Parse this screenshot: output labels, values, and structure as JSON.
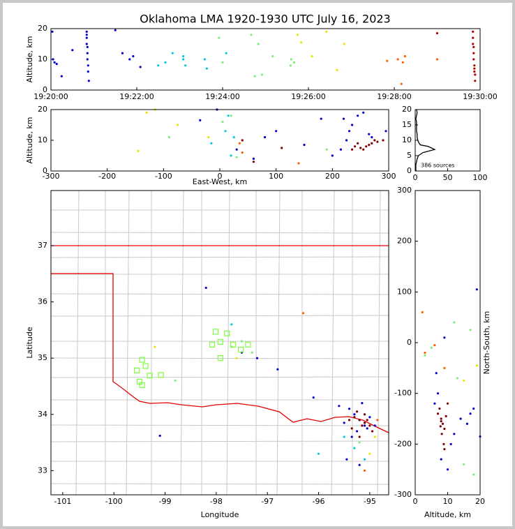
{
  "chart_data": [
    {
      "type": "scatter",
      "title": "Oklahoma LMA 1920-1930 UTC July 16, 2023",
      "ylabel": "Altitude, km",
      "xlim": [
        "19:20:00",
        "19:30:00"
      ],
      "xticks": [
        "19:20:00",
        "19:22:00",
        "19:24:00",
        "19:26:00",
        "19:28:00",
        "19:30:00"
      ],
      "ylim": [
        0,
        20
      ],
      "yticks": [
        0,
        10,
        20
      ],
      "series": [
        {
          "color": "#0000cc",
          "x": [
            "19:20:02",
            "19:20:03",
            "19:20:05",
            "19:20:08",
            "19:20:30",
            "19:20:50",
            "19:20:50",
            "19:20:50",
            "19:20:51",
            "19:20:51",
            "19:20:52",
            "19:20:52",
            "19:20:53",
            "19:20:50",
            "19:20:51",
            "19:21:30",
            "19:21:40",
            "19:21:50",
            "19:22:05",
            "19:21:55",
            "19:20:15"
          ],
          "values": [
            19,
            10,
            9,
            8.5,
            13,
            19,
            17,
            15,
            12,
            10,
            8,
            6,
            3,
            18,
            14,
            19.5,
            12,
            10,
            7.5,
            11,
            4.5
          ]
        },
        {
          "color": "#00c8e6",
          "x": [
            "19:22:40",
            "19:22:50",
            "19:23:05",
            "19:23:05",
            "19:23:08",
            "19:23:35",
            "19:23:38",
            "19:24:05",
            "19:22:30"
          ],
          "values": [
            9,
            12,
            11,
            10,
            8,
            10,
            7,
            12,
            8
          ]
        },
        {
          "color": "#78f078",
          "x": [
            "19:23:55",
            "19:24:00",
            "19:24:40",
            "19:24:45",
            "19:24:50",
            "19:25:10",
            "19:25:35",
            "19:25:36",
            "19:25:40",
            "19:24:55"
          ],
          "values": [
            17,
            9,
            18,
            4.5,
            15,
            11,
            8,
            10,
            9,
            5
          ]
        },
        {
          "color": "#e6e600",
          "x": [
            "19:25:45",
            "19:26:05",
            "19:26:25",
            "19:26:40",
            "19:26:50",
            "19:25:50"
          ],
          "values": [
            18,
            11,
            19,
            6.5,
            15,
            15.5
          ]
        },
        {
          "color": "#ff6000",
          "x": [
            "19:27:50",
            "19:28:05",
            "19:28:10",
            "19:28:12",
            "19:28:15",
            "19:29:00"
          ],
          "values": [
            9.5,
            10,
            2,
            9,
            11,
            10
          ]
        },
        {
          "color": "#b00000",
          "x": [
            "19:29:50",
            "19:29:50",
            "19:29:50",
            "19:29:51",
            "19:29:51",
            "19:29:51",
            "19:29:52",
            "19:29:52",
            "19:29:52",
            "19:29:53",
            "19:29:53",
            "19:29:00"
          ],
          "values": [
            19,
            17,
            15,
            14,
            12,
            10,
            8,
            7,
            6,
            5,
            3,
            18.5
          ]
        }
      ]
    },
    {
      "type": "scatter",
      "xlabel": "East-West, km",
      "ylabel": "Altitude, km",
      "xlim": [
        -300,
        300
      ],
      "xticks": [
        -300,
        -200,
        -100,
        0,
        100,
        200,
        300
      ],
      "ylim": [
        0,
        20
      ],
      "yticks": [
        0,
        10,
        20
      ],
      "series": [
        {
          "color": "#0000cc",
          "x": [
            200,
            215,
            225,
            235,
            245,
            255,
            265,
            230,
            220,
            180,
            150,
            80,
            -35,
            -5,
            30,
            60,
            100,
            270,
            295
          ],
          "values": [
            5,
            7,
            10,
            15,
            18,
            19,
            12,
            13,
            17,
            17,
            8.5,
            11,
            16.5,
            20,
            7,
            4,
            13,
            11,
            13
          ]
        },
        {
          "color": "#00c8e6",
          "x": [
            10,
            15,
            -15,
            25,
            20
          ],
          "values": [
            13,
            18,
            9,
            11,
            5
          ]
        },
        {
          "color": "#78f078",
          "x": [
            5,
            20,
            30,
            190,
            -90
          ],
          "values": [
            16,
            18,
            4.5,
            7,
            11
          ]
        },
        {
          "color": "#e6e600",
          "x": [
            -130,
            -115,
            -75,
            -145,
            -20
          ],
          "values": [
            19,
            20,
            15,
            6.5,
            11
          ]
        },
        {
          "color": "#ff6000",
          "x": [
            140,
            40,
            35
          ],
          "values": [
            2.5,
            6,
            9
          ]
        },
        {
          "color": "#800000",
          "x": [
            240,
            250,
            260,
            270,
            255,
            265,
            245,
            275,
            280,
            290,
            235,
            60,
            40,
            110
          ],
          "values": [
            8,
            7.5,
            8,
            9,
            7,
            8.5,
            9,
            10,
            9.5,
            10,
            7,
            3,
            10,
            7.5
          ]
        }
      ]
    },
    {
      "type": "line",
      "annotation": "386 sources",
      "xlim": [
        0,
        100
      ],
      "xticks": [
        0,
        50,
        100
      ],
      "ylim": [
        0,
        20
      ],
      "yticks": [
        0,
        5,
        10,
        15,
        20
      ],
      "series": [
        {
          "color": "#000000",
          "x": [
            1,
            1,
            1,
            2,
            3,
            5,
            12,
            30,
            25,
            20,
            8,
            6,
            4,
            3,
            3,
            2,
            2,
            2,
            2,
            1,
            2,
            3,
            2
          ],
          "values": [
            0,
            1,
            2,
            3,
            4,
            5,
            6,
            7,
            7.5,
            8,
            8.5,
            9,
            10,
            11,
            12,
            13,
            14,
            15,
            16,
            17,
            18,
            19,
            20
          ]
        }
      ]
    },
    {
      "type": "scatter",
      "map": true,
      "xlabel": "Longitude",
      "ylabel": "Latitude",
      "xlim": [
        -101.23,
        -94.63
      ],
      "xticks": [
        -101,
        -100,
        -99,
        -98,
        -97,
        -96,
        -95
      ],
      "ylim": [
        32.57,
        37.98
      ],
      "yticks": [
        33,
        34,
        35,
        36,
        37
      ],
      "series": [
        {
          "color": "#0000cc",
          "x": [
            -95.3,
            -95.2,
            -95.1,
            -95.4,
            -95.0,
            -95.25,
            -95.15,
            -95.5,
            -95.35,
            -95.05,
            -94.9,
            -95.6,
            -95.45,
            -95.2,
            -96.1,
            -97.2,
            -97.5,
            -98.2,
            -99.1,
            -96.8
          ],
          "values": [
            34.0,
            33.9,
            33.8,
            34.1,
            33.95,
            33.7,
            34.2,
            33.85,
            33.6,
            33.75,
            33.8,
            34.15,
            33.2,
            33.1,
            34.3,
            35.0,
            35.1,
            36.25,
            33.62,
            34.8
          ]
        },
        {
          "color": "#00c8e6",
          "x": [
            -95.3,
            -95.1,
            -96.0,
            -95.5,
            -97.7
          ],
          "values": [
            33.4,
            33.2,
            33.3,
            33.6,
            35.6
          ]
        },
        {
          "color": "#78f078",
          "x": [
            -97.5,
            -97.3,
            -97.7,
            -98.8,
            -95.2
          ],
          "values": [
            35.3,
            35.1,
            35.2,
            34.6,
            33.5
          ]
        },
        {
          "color": "#e6e600",
          "x": [
            -99.2,
            -97.6,
            -95.0,
            -94.9
          ],
          "values": [
            35.2,
            35.0,
            33.3,
            33.6
          ]
        },
        {
          "color": "#ff6000",
          "x": [
            -96.3,
            -94.85,
            -95.1
          ],
          "values": [
            35.8,
            33.9,
            33.0
          ]
        },
        {
          "color": "#800000",
          "x": [
            -95.2,
            -95.1,
            -95.3,
            -95.15,
            -95.25,
            -95.05,
            -95.35,
            -95.0,
            -94.95,
            -95.4,
            -95.2,
            -95.1
          ],
          "values": [
            33.9,
            33.85,
            33.95,
            33.8,
            34.05,
            33.9,
            33.75,
            33.8,
            33.7,
            33.9,
            33.6,
            34.0
          ]
        },
        {
          "color": "#7cff3c",
          "marker": "square",
          "x": [
            -99.55,
            -99.45,
            -99.38,
            -99.3,
            -99.08,
            -99.5,
            -99.45,
            -98.01,
            -98.08,
            -97.92,
            -97.79,
            -97.67,
            -97.52,
            -97.38,
            -97.92
          ],
          "values": [
            34.78,
            34.97,
            34.86,
            34.69,
            34.7,
            34.58,
            34.52,
            35.47,
            35.24,
            35.29,
            35.44,
            35.24,
            35.15,
            35.24,
            35.0
          ]
        }
      ]
    },
    {
      "type": "scatter",
      "xlabel": "Altitude, km",
      "ylabel": "North-South, km",
      "ylabel_position": "right",
      "xlim": [
        0,
        20
      ],
      "xticks": [
        0,
        10,
        20
      ],
      "ylim": [
        -300,
        300
      ],
      "yticks": [
        -300,
        -200,
        -100,
        0,
        100,
        200,
        300
      ],
      "series": [
        {
          "color": "#0000cc",
          "x": [
            6,
            7,
            8,
            10,
            12,
            14,
            16,
            18,
            19,
            20,
            11,
            9,
            6.5,
            17
          ],
          "values": [
            -120,
            -100,
            -230,
            -250,
            -180,
            -150,
            -160,
            -130,
            105,
            -185,
            -200,
            10,
            -60,
            -140
          ]
        },
        {
          "color": "#78f078",
          "x": [
            3,
            5,
            12,
            15,
            18,
            13,
            17
          ],
          "values": [
            -25,
            -10,
            40,
            -240,
            -260,
            -70,
            25
          ]
        },
        {
          "color": "#ff6000",
          "x": [
            2.2,
            3,
            6,
            9
          ],
          "values": [
            60,
            -20,
            -5,
            -50
          ]
        },
        {
          "color": "#e6e600",
          "x": [
            15,
            19
          ],
          "values": [
            -75,
            -45
          ]
        },
        {
          "color": "#800000",
          "x": [
            7,
            8,
            8.5,
            9,
            7.5,
            8,
            9.5,
            8.2,
            7.8,
            8.8,
            9,
            10
          ],
          "values": [
            -140,
            -150,
            -160,
            -170,
            -130,
            -155,
            -145,
            -180,
            -165,
            -200,
            -210,
            -120
          ]
        }
      ]
    }
  ]
}
